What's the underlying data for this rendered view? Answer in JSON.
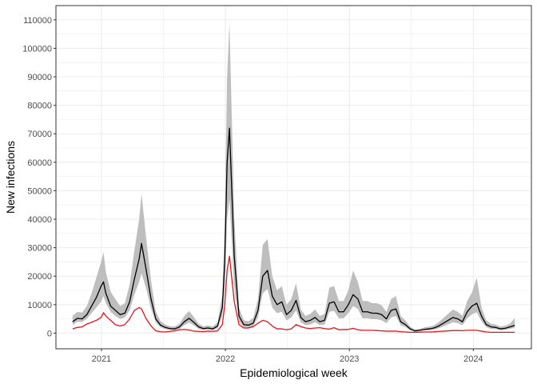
{
  "chart_data": {
    "type": "area",
    "xlabel": "Epidemiological week",
    "ylabel": "New infections",
    "x_tick_labels": [
      "2021",
      "2022",
      "2023",
      "2024"
    ],
    "x_ticks": [
      "2021-01-01",
      "2022-01-01",
      "2023-01-01",
      "2024-01-01"
    ],
    "xlim": [
      "2020-08-20",
      "2024-06-20"
    ],
    "ylim": [
      -5500,
      115000
    ],
    "y_ticks": [
      0,
      10000,
      20000,
      30000,
      40000,
      50000,
      60000,
      70000,
      80000,
      90000,
      100000,
      110000
    ],
    "y_tick_labels": [
      "0",
      "10000",
      "20000",
      "30000",
      "40000",
      "50000",
      "60000",
      "70000",
      "80000",
      "90000",
      "100000",
      "110000"
    ],
    "grid": true,
    "colors": {
      "band": "#bebebe",
      "black_line": "#000000",
      "red_line": "#e8141b",
      "grid": "#ebebeb",
      "panel_border": "#333333"
    },
    "x": [
      "2020-10-08",
      "2020-10-22",
      "2020-11-05",
      "2020-11-19",
      "2020-12-03",
      "2020-12-17",
      "2020-12-31",
      "2021-01-07",
      "2021-01-14",
      "2021-01-28",
      "2021-02-11",
      "2021-02-25",
      "2021-03-11",
      "2021-03-25",
      "2021-04-08",
      "2021-04-22",
      "2021-04-29",
      "2021-05-13",
      "2021-05-27",
      "2021-06-10",
      "2021-06-24",
      "2021-07-08",
      "2021-07-22",
      "2021-08-05",
      "2021-08-19",
      "2021-09-02",
      "2021-09-16",
      "2021-09-30",
      "2021-10-14",
      "2021-10-28",
      "2021-11-11",
      "2021-11-25",
      "2021-12-09",
      "2021-12-23",
      "2021-12-30",
      "2022-01-06",
      "2022-01-13",
      "2022-01-27",
      "2022-02-10",
      "2022-02-24",
      "2022-03-10",
      "2022-03-24",
      "2022-04-07",
      "2022-04-21",
      "2022-05-05",
      "2022-05-19",
      "2022-06-02",
      "2022-06-16",
      "2022-06-30",
      "2022-07-14",
      "2022-07-28",
      "2022-08-11",
      "2022-08-25",
      "2022-09-08",
      "2022-09-22",
      "2022-10-06",
      "2022-10-20",
      "2022-11-03",
      "2022-11-17",
      "2022-12-01",
      "2022-12-15",
      "2022-12-29",
      "2023-01-12",
      "2023-01-26",
      "2023-02-09",
      "2023-02-23",
      "2023-03-09",
      "2023-03-23",
      "2023-04-06",
      "2023-04-20",
      "2023-05-04",
      "2023-05-18",
      "2023-06-01",
      "2023-06-15",
      "2023-06-29",
      "2023-07-13",
      "2023-07-27",
      "2023-08-10",
      "2023-08-24",
      "2023-09-07",
      "2023-09-21",
      "2023-10-05",
      "2023-10-19",
      "2023-11-02",
      "2023-11-16",
      "2023-11-30",
      "2023-12-14",
      "2023-12-28",
      "2024-01-11",
      "2024-01-25",
      "2024-02-08",
      "2024-02-22",
      "2024-03-07",
      "2024-03-21",
      "2024-04-04",
      "2024-04-18",
      "2024-05-02"
    ],
    "series": [
      {
        "values": [
          4000,
          5200,
          5000,
          6500,
          9500,
          12500,
          16500,
          18000,
          14000,
          9500,
          8000,
          6500,
          7000,
          11000,
          19000,
          26000,
          31500,
          22000,
          12000,
          5000,
          2800,
          2000,
          1600,
          1500,
          2200,
          4000,
          5200,
          3800,
          2200,
          1600,
          1800,
          1500,
          2500,
          9000,
          25000,
          60000,
          72000,
          27000,
          6000,
          3000,
          2800,
          3500,
          8000,
          20000,
          22000,
          13000,
          10000,
          11000,
          6500,
          8000,
          11500,
          5500,
          4000,
          4500,
          5500,
          4000,
          4500,
          10500,
          11000,
          7500,
          7500,
          10000,
          13500,
          12000,
          7500,
          7500,
          7000,
          7000,
          6500,
          5000,
          8000,
          8500,
          4000,
          3000,
          1500,
          800,
          1000,
          1300,
          1500,
          1800,
          2500,
          3500,
          4500,
          5500,
          5000,
          4000,
          7500,
          9500,
          10500,
          6000,
          3000,
          2200,
          2000,
          1500,
          1700,
          2200,
          2700
        ]
      },
      {
        "values": [
          1500,
          2000,
          2200,
          3200,
          3800,
          4500,
          5500,
          7200,
          6000,
          4500,
          3000,
          2500,
          3000,
          5000,
          8000,
          9000,
          8500,
          5000,
          2500,
          800,
          500,
          400,
          600,
          800,
          1200,
          1300,
          1100,
          700,
          600,
          500,
          700,
          600,
          800,
          3000,
          10000,
          22000,
          27000,
          11000,
          3000,
          1800,
          1800,
          2300,
          3500,
          4500,
          4000,
          2500,
          1500,
          1500,
          1200,
          1500,
          3000,
          2300,
          1800,
          1600,
          1800,
          1900,
          1600,
          1400,
          1900,
          1200,
          1300,
          1300,
          1700,
          1200,
          1000,
          1000,
          1000,
          900,
          800,
          700,
          700,
          700,
          500,
          400,
          300,
          300,
          350,
          400,
          400,
          450,
          600,
          700,
          800,
          900,
          900,
          850,
          1000,
          1000,
          1000,
          700,
          400,
          300,
          300,
          300,
          300,
          300,
          300
        ]
      },
      {
        "lower": [
          2800,
          4000,
          3900,
          5000,
          7000,
          9000,
          11000,
          13000,
          10500,
          7500,
          6000,
          5000,
          5500,
          8000,
          13500,
          18000,
          21000,
          15500,
          8500,
          3800,
          2000,
          1400,
          1100,
          1000,
          1500,
          2800,
          3700,
          2700,
          1500,
          1100,
          1200,
          1000,
          1700,
          6000,
          16000,
          40000,
          47000,
          16000,
          4000,
          2000,
          1900,
          2500,
          5500,
          14000,
          15500,
          9000,
          7000,
          7500,
          4500,
          5500,
          8000,
          3800,
          2800,
          3000,
          3800,
          2800,
          3000,
          7500,
          7800,
          5200,
          5200,
          7000,
          9500,
          8500,
          5200,
          5200,
          4900,
          4900,
          4500,
          3500,
          5500,
          6000,
          2800,
          2100,
          1000,
          500,
          700,
          900,
          1000,
          1200,
          1700,
          2400,
          3100,
          3800,
          3500,
          2800,
          5200,
          6600,
          7300,
          4200,
          2100,
          1500,
          1400,
          1000,
          1200,
          1500,
          1900
        ],
        "upper": [
          6000,
          7500,
          7200,
          9500,
          14000,
          19500,
          25000,
          28500,
          21500,
          14500,
          12000,
          9500,
          10500,
          17000,
          29000,
          40000,
          49000,
          33000,
          18500,
          7500,
          4200,
          3000,
          2400,
          2300,
          3300,
          6000,
          7800,
          5700,
          3300,
          2400,
          2700,
          2300,
          3800,
          13500,
          38000,
          90000,
          109000,
          41000,
          9000,
          4500,
          4200,
          5300,
          12000,
          31000,
          33000,
          20000,
          15000,
          16500,
          10000,
          12000,
          17500,
          8300,
          6000,
          6800,
          8300,
          6000,
          6800,
          16000,
          16500,
          11300,
          11300,
          15000,
          22000,
          18000,
          11300,
          11300,
          10500,
          10500,
          9800,
          7500,
          12000,
          13000,
          6000,
          4500,
          2300,
          1200,
          1500,
          2000,
          2300,
          2700,
          3800,
          5300,
          6800,
          8300,
          7500,
          6000,
          11300,
          14300,
          19500,
          9000,
          4500,
          3300,
          3000,
          2300,
          2600,
          3300,
          5300
        ]
      }
    ]
  }
}
